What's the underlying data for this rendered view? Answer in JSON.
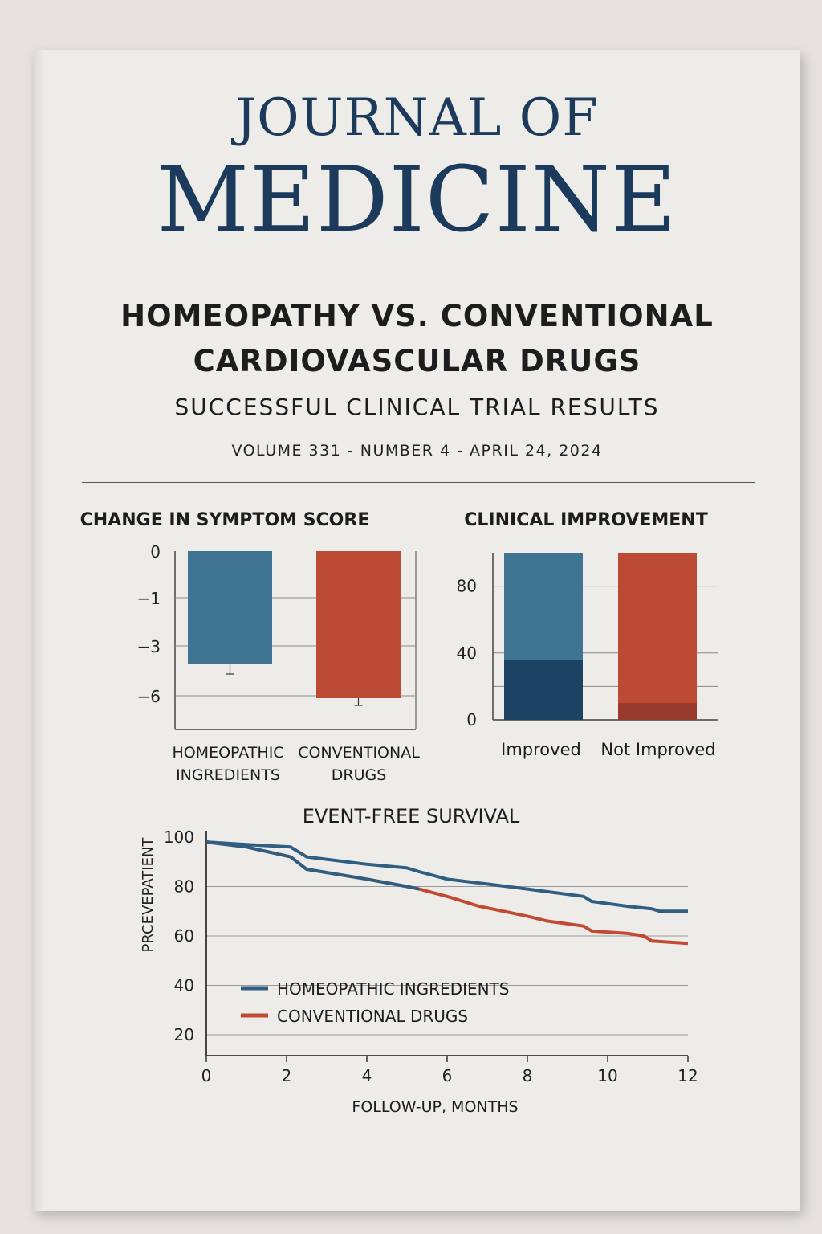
{
  "journal": {
    "line1": "JOURNAL OF",
    "line2": "MEDICINE"
  },
  "headline": {
    "line1": "HOMEOPATHY VS. CONVENTIONAL",
    "line2": "CARDIOVASCULAR DRUGS",
    "subtitle": "SUCCESSFUL CLINICAL TRIAL RESULTS",
    "issue": "VOLUME 331 - NUMBER 4 - APRIL 24, 2024"
  },
  "colors": {
    "blue": "#3f7493",
    "red": "#bd4a34",
    "dark_blue": "#1c4361",
    "dark_red": "#973a2d",
    "title": "#1c3a5c"
  },
  "chart_data": [
    {
      "type": "bar",
      "title": "CHANGE IN SYMPTOM SCORE",
      "ticks": [
        "0",
        "−1",
        "−3",
        "−6"
      ],
      "categories": [
        [
          "HOMEOPATHIC",
          "INGREDIENTS"
        ],
        [
          "CONVENTIONAL",
          "DRUGS"
        ]
      ],
      "values": [
        -4.7,
        -6.1
      ],
      "error": [
        0.4,
        0.3
      ],
      "grid": true
    },
    {
      "type": "bar",
      "title": "CLINICAL IMPROVEMENT",
      "ticks": [
        "80",
        "40",
        "0"
      ],
      "categories": [
        "Improved",
        "Not Improved"
      ],
      "stacked": [
        {
          "top": 100,
          "inner": 36
        },
        {
          "top": 100,
          "inner": 10
        }
      ],
      "ylim": [
        0,
        100
      ],
      "grid": true
    },
    {
      "type": "line",
      "title": "EVENT-FREE SURVIVAL",
      "ylabel": "PRCEVEPATIENT",
      "xlabel": "FOLLOW-UP, MONTHS",
      "xticks": [
        "0",
        "2",
        "4",
        "6",
        "8",
        "10",
        "12"
      ],
      "yticks": [
        "100",
        "80",
        "60",
        "40",
        "20"
      ],
      "xlim": [
        0,
        12
      ],
      "ylim": [
        20,
        100
      ],
      "legend_position": "lower-left",
      "series": [
        {
          "name": "HOMEOPATHIC INGREDIENTS",
          "color": "#2f5e82",
          "x": [
            0,
            1,
            2.1,
            2.5,
            4,
            5,
            5.3,
            6,
            7,
            8,
            9.4,
            9.6,
            10.5,
            11.1,
            11.3,
            12
          ],
          "y": [
            98,
            97,
            96,
            92,
            89,
            87.5,
            86,
            83,
            81,
            79,
            76,
            74,
            72,
            71,
            70,
            70
          ]
        },
        {
          "name": "CONVENTIONAL DRUGS",
          "color": "#c04a32",
          "x": [
            0,
            1,
            2.1,
            2.5,
            4,
            5,
            5.3,
            6,
            6.8,
            8,
            8.5,
            9.4,
            9.6,
            10.5,
            10.9,
            11.1,
            12
          ],
          "y": [
            98,
            96,
            92,
            87,
            83,
            80,
            79,
            76,
            72,
            68,
            66,
            64,
            62,
            61,
            60,
            58,
            57
          ]
        }
      ]
    }
  ]
}
